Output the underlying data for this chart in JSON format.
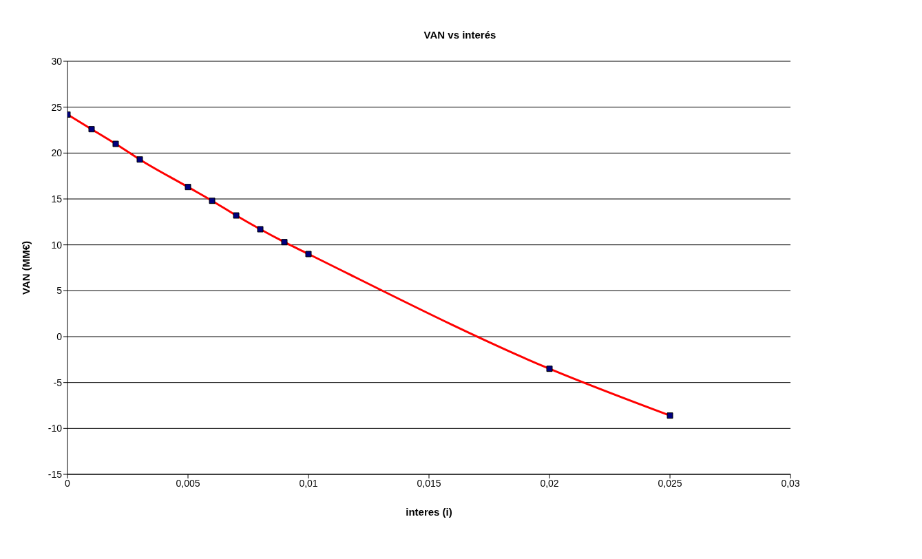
{
  "chart_data": {
    "type": "scatter",
    "title": "VAN vs interés",
    "xlabel": "interes (i)",
    "ylabel": "VAN (MM€)",
    "x": [
      0,
      0.001,
      0.002,
      0.003,
      0.005,
      0.006,
      0.007,
      0.008,
      0.009,
      0.01,
      0.02,
      0.025
    ],
    "series": [
      {
        "color": "#000080",
        "marker": "square",
        "values": [
          24.2,
          22.6,
          21.0,
          19.3,
          16.3,
          14.8,
          13.2,
          11.7,
          10.3,
          9.0,
          -3.5,
          -8.6
        ]
      },
      {
        "type": "line",
        "color": "#ff0000",
        "marker": "none",
        "values": [
          24.2,
          22.6,
          21.0,
          19.3,
          16.3,
          14.8,
          13.2,
          11.7,
          10.3,
          9.0,
          -3.5,
          -8.6
        ]
      }
    ],
    "xlim": [
      0,
      0.03
    ],
    "xticks": [
      0,
      {
        "value": 0.005,
        "label": "0,005"
      },
      {
        "value": 0.01,
        "label": "0,01"
      },
      {
        "value": 0.015,
        "label": "0,015"
      },
      {
        "value": 0.02,
        "label": "0,02"
      },
      {
        "value": 0.025,
        "label": "0,025"
      },
      {
        "value": 0.03,
        "label": "0,03"
      }
    ],
    "ylim": [
      -15,
      30
    ],
    "yticks": [
      -15,
      -10,
      -5,
      0,
      5,
      10,
      15,
      20,
      25,
      30
    ],
    "grid": "y",
    "legend": false
  }
}
